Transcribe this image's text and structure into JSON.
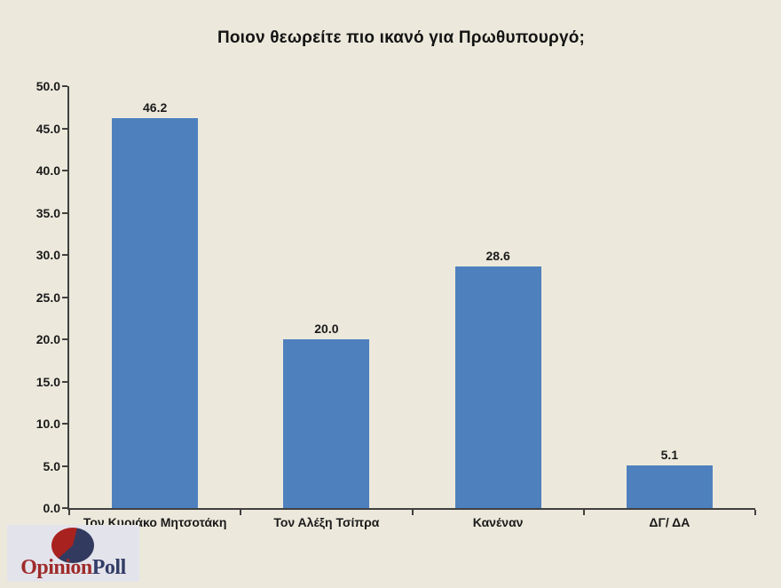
{
  "chart_data": {
    "type": "bar",
    "title": "Ποιον θεωρείτε πιο ικανό για Πρωθυπουργό;",
    "categories": [
      "Τον Κυριάκο Μητσοτάκη",
      "Τον Αλέξη Τσίπρα",
      "Κανέναν",
      "ΔΓ/ ΔΑ"
    ],
    "values": [
      46.2,
      20.0,
      28.6,
      5.1
    ],
    "data_labels": [
      "46.2",
      "20.0",
      "28.6",
      "5.1"
    ],
    "xlabel": "",
    "ylabel": "",
    "ylim": [
      0,
      50
    ],
    "ytick_step": 5,
    "ytick_labels": [
      "0.0",
      "5.0",
      "10.0",
      "15.0",
      "20.0",
      "25.0",
      "30.0",
      "35.0",
      "40.0",
      "45.0",
      "50.0"
    ],
    "grid": false,
    "legend": "none",
    "bar_color": "#4E80BE",
    "background_color": "#ECE9DC",
    "axis_color": "#404040",
    "label_color": "#1A1A1A"
  },
  "logo": {
    "opinion": "Opinion",
    "poll": "Poll",
    "opinion_color": "#9E2B2B",
    "poll_color": "#333C66",
    "pie_navy": "#333A5F",
    "pie_red": "#A8221F",
    "box_color": "#E3E3EB",
    "icon": "pie-chart-icon"
  }
}
